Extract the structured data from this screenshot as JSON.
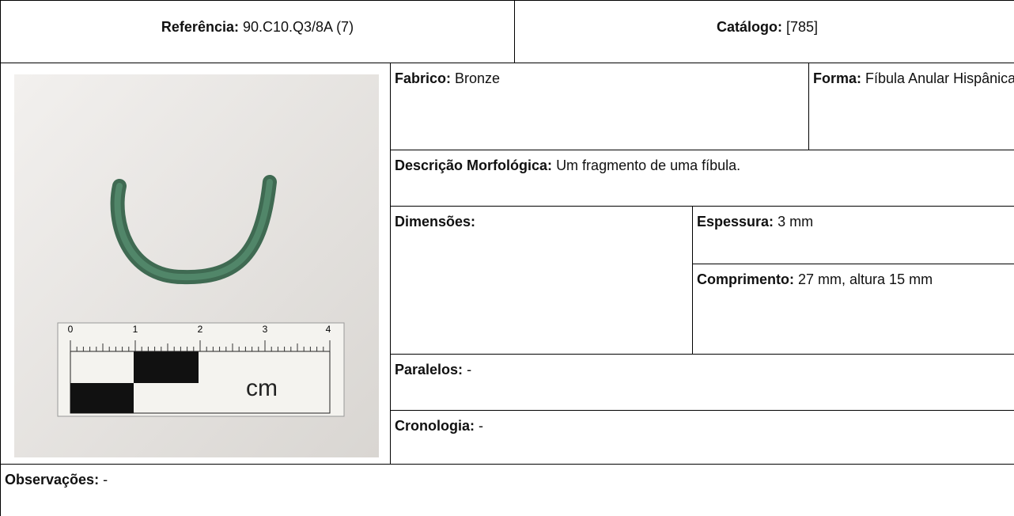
{
  "header": {
    "reference_label": "Referência:",
    "reference_value": "90.C10.Q3/8A (7)",
    "catalog_label": "Catálogo:",
    "catalog_value": "[785]"
  },
  "photo": {
    "scale_labels": [
      "0",
      "1",
      "2",
      "3",
      "4"
    ],
    "unit": "cm"
  },
  "fields": {
    "fabrico": {
      "label": "Fabrico:",
      "value": "Bronze"
    },
    "forma": {
      "label": "Forma:",
      "value": "Fíbula Anular Hispânica"
    },
    "descricao": {
      "label": "Descrição Morfológica:",
      "value": "Um fragmento de uma fíbula."
    },
    "dimensoes": {
      "label": "Dimensões:"
    },
    "espessura": {
      "label": "Espessura:",
      "value": "3 mm"
    },
    "comprimento": {
      "label": "Comprimento:",
      "value": "27 mm, altura 15 mm"
    },
    "paralelos": {
      "label": "Paralelos:",
      "value": "-"
    },
    "cronologia": {
      "label": "Cronologia:",
      "value": "-"
    },
    "observacoes": {
      "label": "Observações:",
      "value": "-"
    }
  }
}
